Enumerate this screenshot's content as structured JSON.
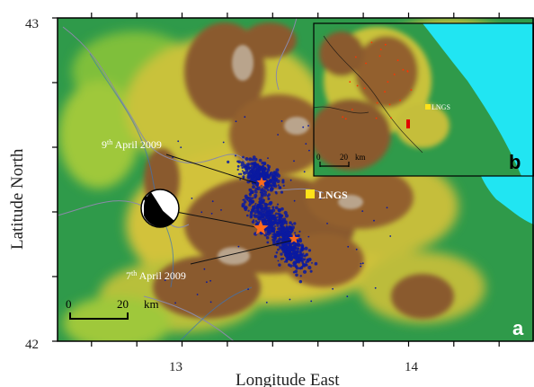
{
  "axes": {
    "x_label": "Longitude East",
    "y_label": "Latitude North",
    "y_ticks": [
      {
        "value": 43,
        "label": "43"
      },
      {
        "value": 42,
        "label": "42"
      }
    ],
    "x_ticks": [
      {
        "value": 13,
        "label": "13"
      },
      {
        "value": 14,
        "label": "14"
      }
    ],
    "xlim": [
      12.45,
      14.55
    ],
    "ylim": [
      42.0,
      43.0
    ]
  },
  "annotations": {
    "event_april9": {
      "prefix": "9",
      "sup": "th",
      "text": " April 2009"
    },
    "event_april7": {
      "prefix": "7",
      "sup": "th",
      "text": " April 2009"
    },
    "lngs_label": "LNGS",
    "panel_a": "a",
    "panel_b": "b"
  },
  "scale_bar": {
    "zero": "0",
    "value": "20",
    "unit": "km"
  },
  "inset": {
    "scale_zero": "0",
    "scale_value": "20",
    "scale_unit": "km",
    "lngs_label": "LNGS"
  },
  "colors": {
    "lowland": "#2f9a4a",
    "hills": "#d8c43a",
    "mountains": "#8a5a2e",
    "peaks": "#b9a48c",
    "sea": "#21e5f2",
    "seismicity": "#0a1aa0",
    "epicenter": "#ff6a1a",
    "lngs_marker": "#ffe21a"
  },
  "icons": [
    "focal-mechanism-beachball-icon",
    "epicenter-star-icon",
    "lngs-square-icon"
  ]
}
